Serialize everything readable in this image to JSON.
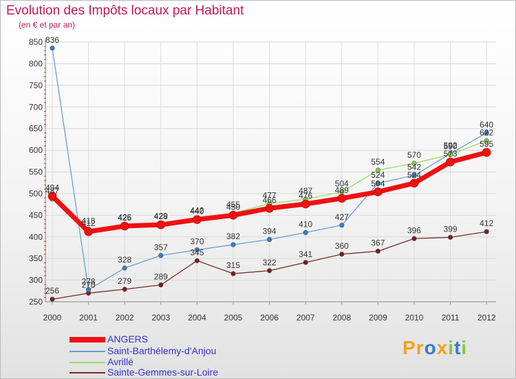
{
  "chart_data": {
    "type": "line",
    "title": "Evolution des Impôts locaux par Habitant",
    "subtitle": "(en € et par an)",
    "xlabel": "",
    "ylabel": "",
    "x": [
      "2000",
      "2001",
      "2002",
      "2003",
      "2004",
      "2005",
      "2006",
      "2007",
      "2008",
      "2009",
      "2010",
      "2011",
      "2012"
    ],
    "ylim": [
      250,
      850
    ],
    "yticks": [
      "250",
      "300",
      "350",
      "400",
      "450",
      "500",
      "550",
      "600",
      "650",
      "700",
      "750",
      "800",
      "850"
    ],
    "grid": true,
    "legend_position": "bottom-left",
    "series": [
      {
        "name": "ANGERS",
        "color": "#ee1111",
        "marker_color": "#ee1111",
        "values": [
          494,
          412,
          425,
          428,
          440,
          450,
          466,
          476,
          489,
          504,
          524,
          573,
          595
        ]
      },
      {
        "name": "Saint-Barthélemy-d'Anjou",
        "color": "#6a9fd4",
        "marker_color": "#2f7fce",
        "values": [
          836,
          278,
          328,
          357,
          370,
          382,
          394,
          410,
          427,
          524,
          542,
          592,
          640
        ]
      },
      {
        "name": "Avrillé",
        "color": "#99dd66",
        "marker_color": "#7cd63a",
        "values": [
          487,
          418,
          426,
          429,
          442,
          455,
          477,
          487,
          504,
          554,
          570,
          590,
          622
        ]
      },
      {
        "name": "Sainte-Gemmes-sur-Loire",
        "color": "#7a2a2a",
        "marker_color": "#7a1f1f",
        "values": [
          256,
          270,
          279,
          289,
          345,
          315,
          322,
          341,
          360,
          367,
          396,
          399,
          412
        ]
      }
    ]
  },
  "logo": {
    "letters": [
      "P",
      "r",
      "o",
      "x",
      "i",
      "t",
      "i"
    ],
    "colors": [
      "#f4a21b",
      "#f4a21b",
      "#2f7fce",
      "#f4a21b",
      "#8bc540",
      "#2f7fce",
      "#8bc540"
    ]
  }
}
